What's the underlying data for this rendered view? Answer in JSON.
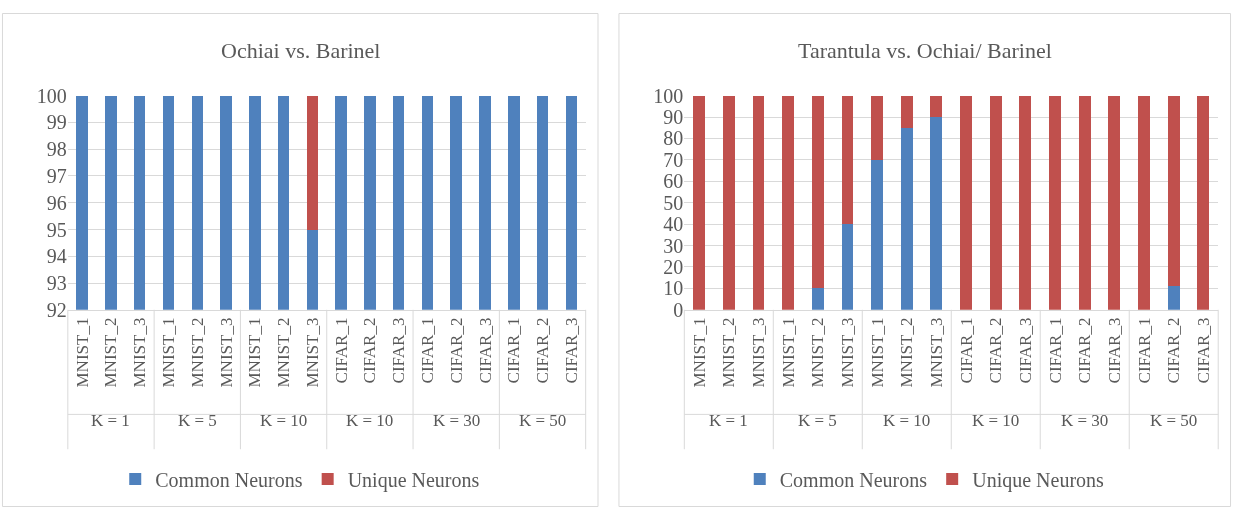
{
  "chart_data": [
    {
      "type": "bar",
      "title": "Ochiai vs. Barinel",
      "categories": [
        "MNIST_1",
        "MNIST_2",
        "MNIST_3",
        "MNIST_1",
        "MNIST_2",
        "MNIST_3",
        "MNIST_1",
        "MNIST_2",
        "MNIST_3",
        "CIFAR_1",
        "CIFAR_2",
        "CIFAR_3",
        "CIFAR_1",
        "CIFAR_2",
        "CIFAR_3",
        "CIFAR_1",
        "CIFAR_2",
        "CIFAR_3"
      ],
      "series": [
        {
          "name": "Common Neurons",
          "color": "#4f81bd",
          "values": [
            100,
            100,
            100,
            100,
            100,
            100,
            100,
            100,
            95,
            100,
            100,
            100,
            100,
            100,
            100,
            100,
            100,
            100
          ]
        },
        {
          "name": "Unique Neurons",
          "color": "#c0504d",
          "values": [
            null,
            null,
            null,
            null,
            null,
            null,
            null,
            null,
            5,
            null,
            null,
            null,
            null,
            null,
            null,
            null,
            null,
            null
          ],
          "base": [
            null,
            null,
            null,
            null,
            null,
            null,
            null,
            null,
            95,
            null,
            null,
            null,
            null,
            null,
            null,
            null,
            null,
            null
          ]
        }
      ],
      "ylim": [
        92,
        100
      ],
      "yticks": [
        92,
        93,
        94,
        95,
        96,
        97,
        98,
        99,
        100
      ],
      "grid": "y",
      "legend": "bottom",
      "annotations": [
        "K = 1",
        "K = 5",
        "K = 10",
        "K = 10",
        "K = 30",
        "K = 50"
      ]
    },
    {
      "type": "bar",
      "title": "Tarantula vs. Ochiai/ Barinel",
      "stacked": true,
      "categories": [
        "MNIST_1",
        "MNIST_2",
        "MNIST_3",
        "MNIST_1",
        "MNIST_2",
        "MNIST_3",
        "MNIST_1",
        "MNIST_2",
        "MNIST_3",
        "CIFAR_1",
        "CIFAR_2",
        "CIFAR_3",
        "CIFAR_1",
        "CIFAR_2",
        "CIFAR_3",
        "CIFAR_1",
        "CIFAR_2",
        "CIFAR_3"
      ],
      "series": [
        {
          "name": "Common Neurons",
          "color": "#4f81bd",
          "values": [
            0,
            0,
            0,
            0,
            10,
            40,
            70,
            85,
            90,
            0,
            0,
            0,
            0,
            0,
            0,
            0,
            11,
            0
          ]
        },
        {
          "name": "Unique Neurons",
          "color": "#c0504d",
          "values": [
            100,
            100,
            100,
            100,
            90,
            60,
            30,
            15,
            10,
            100,
            100,
            100,
            100,
            100,
            100,
            100,
            89,
            100
          ]
        }
      ],
      "ylim": [
        0,
        100
      ],
      "yticks": [
        0,
        10,
        20,
        30,
        40,
        50,
        60,
        70,
        80,
        90,
        100
      ],
      "grid": "y",
      "legend": "bottom",
      "annotations": [
        "K = 1",
        "K = 5",
        "K = 10",
        "K = 10",
        "K = 30",
        "K = 50"
      ]
    }
  ]
}
